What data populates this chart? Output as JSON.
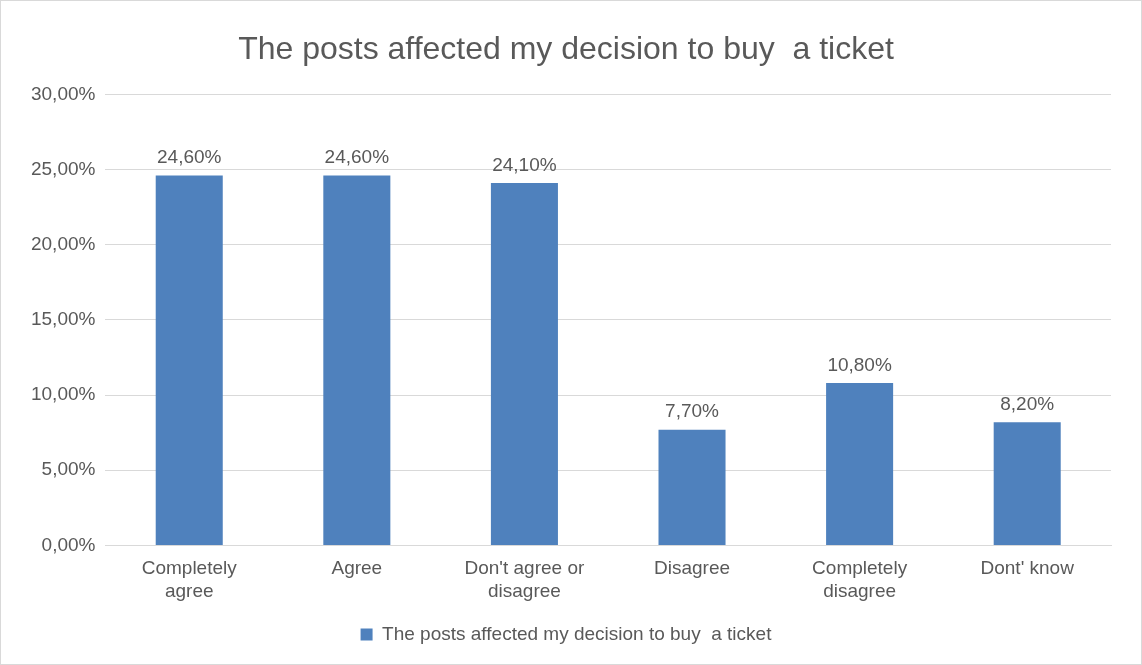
{
  "chart_data": {
    "type": "bar",
    "title": "The posts affected my decision to buy  a ticket",
    "categories": [
      "Completely agree",
      "Agree",
      "Don't agree or disagree",
      "Disagree",
      "Completely disagree",
      "Dont' know"
    ],
    "series": [
      {
        "name": "The posts affected my decision to buy  a ticket",
        "color": "#4f81bd",
        "values": [
          24.6,
          24.6,
          24.1,
          7.7,
          10.8,
          8.2
        ],
        "value_labels": [
          "24,60%",
          "24,60%",
          "24,10%",
          "7,70%",
          "10,80%",
          "8,20%"
        ]
      }
    ],
    "ylim": [
      0,
      30
    ],
    "yticks": [
      {
        "value": 0,
        "label": "0,00%"
      },
      {
        "value": 5,
        "label": "5,00%"
      },
      {
        "value": 10,
        "label": "10,00%"
      },
      {
        "value": 15,
        "label": "15,00%"
      },
      {
        "value": 20,
        "label": "20,00%"
      },
      {
        "value": 25,
        "label": "25,00%"
      },
      {
        "value": 30,
        "label": "30,00%"
      }
    ],
    "grid": "y",
    "legend": "bottom"
  }
}
